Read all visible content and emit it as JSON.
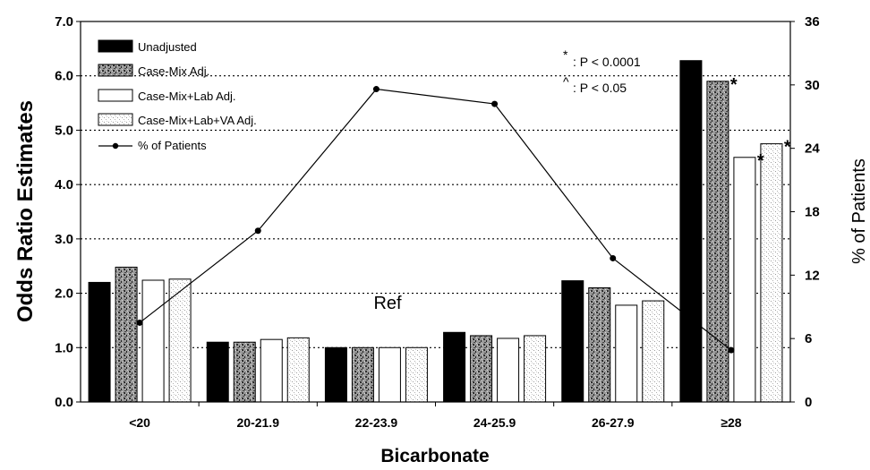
{
  "chart_data": {
    "type": "bar",
    "xlabel": "Bicarbonate",
    "ylabel": "Odds Ratio Estimates",
    "y2label": "% of Patients",
    "ylim": [
      0,
      7
    ],
    "y2lim": [
      0,
      36
    ],
    "yticks": [
      "0.0",
      "1.0",
      "2.0",
      "3.0",
      "4.0",
      "5.0",
      "6.0",
      "7.0"
    ],
    "y2ticks": [
      "0",
      "6",
      "12",
      "18",
      "24",
      "30",
      "36"
    ],
    "categories": [
      "<20",
      "20-21.9",
      "22-23.9",
      "24-25.9",
      "26-27.9",
      "≥28"
    ],
    "series": [
      {
        "name": "Unadjusted",
        "values": [
          2.2,
          1.1,
          1.0,
          1.28,
          2.23,
          6.28
        ],
        "color": "#000000",
        "pattern": "solid"
      },
      {
        "name": "Case-Mix Adj.",
        "values": [
          2.48,
          1.1,
          1.0,
          1.22,
          2.1,
          5.9
        ],
        "color": "#8a8a8a",
        "pattern": "speckle-dark"
      },
      {
        "name": "Case-Mix+Lab Adj.",
        "values": [
          2.24,
          1.15,
          1.0,
          1.17,
          1.78,
          4.5
        ],
        "color": "#ffffff",
        "pattern": "white"
      },
      {
        "name": "Case-Mix+Lab+VA Adj.",
        "values": [
          2.26,
          1.18,
          1.0,
          1.22,
          1.86,
          4.75
        ],
        "color": "#f4f4f4",
        "pattern": "speckle-light"
      }
    ],
    "line_series": {
      "name": "% of Patients",
      "values": [
        7.5,
        16.2,
        29.6,
        28.2,
        13.6,
        4.9
      ],
      "axis": "right"
    },
    "annotations": {
      "ref_label": "Ref",
      "legend_note_1_symbol": "*",
      "legend_note_1_text": ": P < 0.0001",
      "legend_note_2_symbol": "^",
      "legend_note_2_text": ": P < 0.05",
      "sig_marks": [
        {
          "category": 5,
          "series": 1,
          "symbol": "*"
        },
        {
          "category": 5,
          "series": 2,
          "symbol": "*"
        },
        {
          "category": 5,
          "series": 3,
          "symbol": "*"
        }
      ]
    },
    "gridlines": "dotted-horizontal",
    "legend_position": "top-left"
  }
}
